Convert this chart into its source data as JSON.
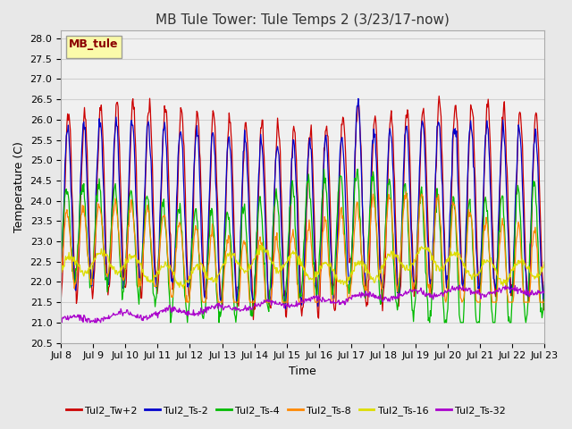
{
  "title": "MB Tule Tower: Tule Temps 2 (3/23/17-now)",
  "xlabel": "Time",
  "ylabel": "Temperature (C)",
  "ylim": [
    20.5,
    28.2
  ],
  "x_tick_labels": [
    "Jul 8",
    "Jul 9",
    "Jul 10",
    "Jul 11",
    "Jul 12",
    "Jul 13",
    "Jul 14",
    "Jul 15",
    "Jul 16",
    "Jul 17",
    "Jul 18",
    "Jul 19",
    "Jul 20",
    "Jul 21",
    "Jul 22",
    "Jul 23"
  ],
  "legend_label": "MB_tule",
  "series_labels": [
    "Tul2_Tw+2",
    "Tul2_Ts-2",
    "Tul2_Ts-4",
    "Tul2_Ts-8",
    "Tul2_Ts-16",
    "Tul2_Ts-32"
  ],
  "series_colors": [
    "#cc0000",
    "#0000cc",
    "#00bb00",
    "#ff8800",
    "#dddd00",
    "#aa00cc"
  ],
  "background_color": "#e8e8e8",
  "plot_bg_color": "#f0f0f0",
  "grid_color": "#d0d0d0",
  "title_fontsize": 11,
  "axis_fontsize": 9,
  "tick_fontsize": 8,
  "legend_fontsize": 8
}
